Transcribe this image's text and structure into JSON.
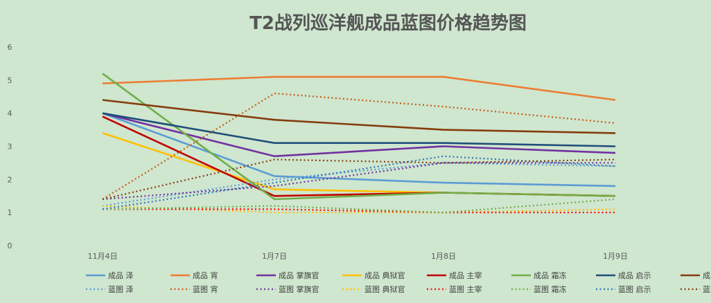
{
  "chart_data": {
    "type": "line",
    "title": "T2战列巡洋舰成品蓝图价格趋势图",
    "categories": [
      "11月4日",
      "1月7日",
      "1月8日",
      "1月9日"
    ],
    "ylim": [
      0,
      6
    ],
    "yticks": [
      "0",
      "1",
      "2",
      "3",
      "4",
      "5",
      "6"
    ],
    "grid": false,
    "legend_position": "bottom",
    "series": [
      {
        "name": "成品 泽",
        "values": [
          4.0,
          2.1,
          1.9,
          1.8
        ],
        "color": "#5b9bd5",
        "style": "solid"
      },
      {
        "name": "成品 宵",
        "values": [
          4.9,
          5.1,
          5.1,
          4.4
        ],
        "color": "#ed7d31",
        "style": "solid"
      },
      {
        "name": "成品 掌旗官",
        "values": [
          4.0,
          2.7,
          3.0,
          2.8
        ],
        "color": "#7030a0",
        "style": "solid"
      },
      {
        "name": "成品 典狱官",
        "values": [
          3.4,
          1.7,
          1.6,
          1.5
        ],
        "color": "#ffc000",
        "style": "solid"
      },
      {
        "name": "成品 主宰",
        "values": [
          3.9,
          1.5,
          1.6,
          1.5
        ],
        "color": "#c00000",
        "style": "solid"
      },
      {
        "name": "成品 霜冻",
        "values": [
          5.2,
          1.4,
          1.6,
          1.5
        ],
        "color": "#70ad47",
        "style": "solid"
      },
      {
        "name": "成品 启示",
        "values": [
          4.0,
          3.1,
          3.1,
          3.0
        ],
        "color": "#1f4e79",
        "style": "solid"
      },
      {
        "name": "成品 厄运",
        "values": [
          4.4,
          3.8,
          3.5,
          3.4
        ],
        "color": "#843c0c",
        "style": "solid"
      },
      {
        "name": "蓝图 泽",
        "values": [
          1.2,
          2.0,
          2.5,
          2.4
        ],
        "color": "#5b9bd5",
        "style": "dotted"
      },
      {
        "name": "蓝图 宵",
        "values": [
          1.4,
          4.6,
          4.2,
          3.7
        ],
        "color": "#c55a11",
        "style": "dotted"
      },
      {
        "name": "蓝图 掌旗官",
        "values": [
          1.4,
          1.8,
          2.5,
          2.5
        ],
        "color": "#7030a0",
        "style": "dotted"
      },
      {
        "name": "蓝图 典狱官",
        "values": [
          1.2,
          1.0,
          1.0,
          1.1
        ],
        "color": "#ffc000",
        "style": "dotted"
      },
      {
        "name": "蓝图 主宰",
        "values": [
          1.1,
          1.1,
          1.0,
          1.0
        ],
        "color": "#ff0000",
        "style": "dotted"
      },
      {
        "name": "蓝图 霜冻",
        "values": [
          1.1,
          1.2,
          1.0,
          1.4
        ],
        "color": "#70ad47",
        "style": "dotted"
      },
      {
        "name": "蓝图 启示",
        "values": [
          1.1,
          1.9,
          2.7,
          2.4
        ],
        "color": "#2e75b6",
        "style": "dotted"
      },
      {
        "name": "蓝图 厄运",
        "values": [
          1.4,
          2.6,
          2.5,
          2.6
        ],
        "color": "#843c0c",
        "style": "dotted"
      }
    ]
  }
}
